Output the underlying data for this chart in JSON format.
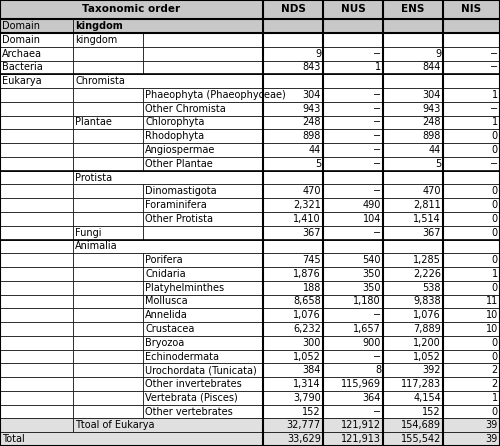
{
  "title": "Taxonomic order",
  "col_headers": [
    "NDS",
    "NUS",
    "ENS",
    "NIS"
  ],
  "rows": [
    {
      "c0": "Domain",
      "c1": "kingdom",
      "c2": "",
      "c3": "",
      "c4": "",
      "c5": "",
      "c6": "",
      "type": "subheader"
    },
    {
      "c0": "Archaea",
      "c1": "",
      "c2": "",
      "c3": "9",
      "c4": "−",
      "c5": "9",
      "c6": "−",
      "type": "data"
    },
    {
      "c0": "Bacteria",
      "c1": "",
      "c2": "",
      "c3": "843",
      "c4": "1",
      "c5": "844",
      "c6": "−",
      "type": "data"
    },
    {
      "c0": "Eukarya",
      "c1": "Chromista",
      "c2": "",
      "c3": "",
      "c4": "",
      "c5": "",
      "c6": "",
      "type": "kingdom_hdr"
    },
    {
      "c0": "",
      "c1": "",
      "c2": "Phaeophyta (Phaeophyceae)",
      "c3": "304",
      "c4": "−",
      "c5": "304",
      "c6": "1",
      "type": "data"
    },
    {
      "c0": "",
      "c1": "",
      "c2": "Other Chromista",
      "c3": "943",
      "c4": "−",
      "c5": "943",
      "c6": "−",
      "type": "data"
    },
    {
      "c0": "",
      "c1": "Plantae",
      "c2": "Chlorophyta",
      "c3": "248",
      "c4": "−",
      "c5": "248",
      "c6": "1",
      "type": "data"
    },
    {
      "c0": "",
      "c1": "",
      "c2": "Rhodophyta",
      "c3": "898",
      "c4": "−",
      "c5": "898",
      "c6": "0",
      "type": "data"
    },
    {
      "c0": "",
      "c1": "",
      "c2": "Angiospermae",
      "c3": "44",
      "c4": "−",
      "c5": "44",
      "c6": "0",
      "type": "data"
    },
    {
      "c0": "",
      "c1": "",
      "c2": "Other Plantae",
      "c3": "5",
      "c4": "−",
      "c5": "5",
      "c6": "−",
      "type": "data"
    },
    {
      "c0": "",
      "c1": "Protista",
      "c2": "",
      "c3": "",
      "c4": "",
      "c5": "",
      "c6": "",
      "type": "kingdom_hdr"
    },
    {
      "c0": "",
      "c1": "",
      "c2": "Dinomastigota",
      "c3": "470",
      "c4": "−",
      "c5": "470",
      "c6": "0",
      "type": "data"
    },
    {
      "c0": "",
      "c1": "",
      "c2": "Foraminifera",
      "c3": "2,321",
      "c4": "490",
      "c5": "2,811",
      "c6": "0",
      "type": "data"
    },
    {
      "c0": "",
      "c1": "",
      "c2": "Other Protista",
      "c3": "1,410",
      "c4": "104",
      "c5": "1,514",
      "c6": "0",
      "type": "data"
    },
    {
      "c0": "",
      "c1": "Fungi",
      "c2": "",
      "c3": "367",
      "c4": "−",
      "c5": "367",
      "c6": "0",
      "type": "data"
    },
    {
      "c0": "",
      "c1": "Animalia",
      "c2": "",
      "c3": "",
      "c4": "",
      "c5": "",
      "c6": "",
      "type": "kingdom_hdr"
    },
    {
      "c0": "",
      "c1": "",
      "c2": "Porifera",
      "c3": "745",
      "c4": "540",
      "c5": "1,285",
      "c6": "0",
      "type": "data"
    },
    {
      "c0": "",
      "c1": "",
      "c2": "Cnidaria",
      "c3": "1,876",
      "c4": "350",
      "c5": "2,226",
      "c6": "1",
      "type": "data"
    },
    {
      "c0": "",
      "c1": "",
      "c2": "Platyhelminthes",
      "c3": "188",
      "c4": "350",
      "c5": "538",
      "c6": "0",
      "type": "data"
    },
    {
      "c0": "",
      "c1": "",
      "c2": "Mollusca",
      "c3": "8,658",
      "c4": "1,180",
      "c5": "9,838",
      "c6": "11",
      "type": "data"
    },
    {
      "c0": "",
      "c1": "",
      "c2": "Annelida",
      "c3": "1,076",
      "c4": "−",
      "c5": "1,076",
      "c6": "10",
      "type": "data"
    },
    {
      "c0": "",
      "c1": "",
      "c2": "Crustacea",
      "c3": "6,232",
      "c4": "1,657",
      "c5": "7,889",
      "c6": "10",
      "type": "data"
    },
    {
      "c0": "",
      "c1": "",
      "c2": "Bryozoa",
      "c3": "300",
      "c4": "900",
      "c5": "1,200",
      "c6": "0",
      "type": "data"
    },
    {
      "c0": "",
      "c1": "",
      "c2": "Echinodermata",
      "c3": "1,052",
      "c4": "−",
      "c5": "1,052",
      "c6": "0",
      "type": "data"
    },
    {
      "c0": "",
      "c1": "",
      "c2": "Urochordata (Tunicata)",
      "c3": "384",
      "c4": "8",
      "c5": "392",
      "c6": "2",
      "type": "data"
    },
    {
      "c0": "",
      "c1": "",
      "c2": "Other invertebrates",
      "c3": "1,314",
      "c4": "115,969",
      "c5": "117,283",
      "c6": "2",
      "type": "data"
    },
    {
      "c0": "",
      "c1": "",
      "c2": "Vertebrata (Pisces)",
      "c3": "3,790",
      "c4": "364",
      "c5": "4,154",
      "c6": "1",
      "type": "data"
    },
    {
      "c0": "",
      "c1": "",
      "c2": "Other vertebrates",
      "c3": "152",
      "c4": "−",
      "c5": "152",
      "c6": "0",
      "type": "data"
    },
    {
      "c0": "",
      "c1": "Ttoal of Eukarya",
      "c2": "",
      "c3": "32,777",
      "c4": "121,912",
      "c5": "154,689",
      "c6": "39",
      "type": "subtotal"
    },
    {
      "c0": "Total",
      "c1": "",
      "c2": "",
      "c3": "33,629",
      "c4": "121,913",
      "c5": "155,542",
      "c6": "39",
      "type": "total"
    }
  ],
  "header_bg": "#c8c8c8",
  "subheader_bg": "#c8c8c8",
  "data_bg": "#ffffff",
  "total_bg": "#e0e0e0",
  "border_color": "#000000",
  "thick_border": 1.5,
  "thin_border": 0.5,
  "font_size": 7.0
}
